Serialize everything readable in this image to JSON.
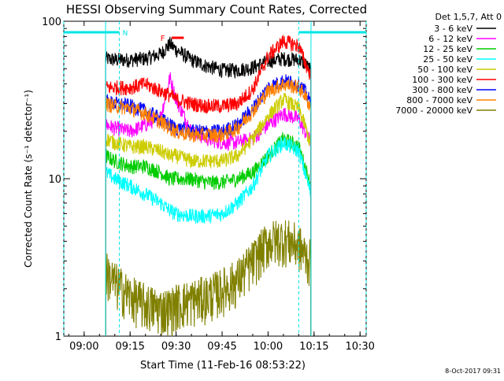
{
  "chart_data": {
    "type": "line",
    "title": "HESSI Observing Summary Count Rates, Corrected",
    "xlabel": "Start Time (11-Feb-16 08:53:22)",
    "ylabel": "Corrected Count Rate (s⁻¹ detector⁻¹)",
    "yscale": "log",
    "ylim": [
      1,
      100
    ],
    "xlim": [
      "08:53:22",
      "10:32:00"
    ],
    "x_ticks": [
      "09:00",
      "09:15",
      "09:30",
      "09:45",
      "10:00",
      "10:15",
      "10:30"
    ],
    "y_ticks": [
      "1",
      "10",
      "100"
    ],
    "legend_header": "Det 1,5,7, Att 0",
    "legend_placement": "top-right",
    "timestamp": "8-Oct-2017 09:31",
    "annotations": {
      "night_label": "N",
      "flare_label": "F"
    },
    "night_intervals": [
      {
        "start": "08:53:22",
        "end": "09:11:30"
      },
      {
        "start": "10:10:00",
        "end": "10:32:00"
      }
    ],
    "flare_interval": {
      "start": "09:28:30",
      "end": "09:32:30"
    },
    "data_interval": {
      "start": "09:07:00",
      "end": "10:14:00"
    },
    "time_samples": [
      "09:07",
      "09:10",
      "09:15",
      "09:20",
      "09:25",
      "09:28",
      "09:30",
      "09:35",
      "09:40",
      "09:45",
      "09:50",
      "09:55",
      "10:00",
      "10:05",
      "10:10",
      "10:12",
      "10:14"
    ],
    "series": [
      {
        "name": "3 - 6 keV",
        "color": "#000000",
        "values": [
          58,
          57,
          57,
          58,
          62,
          72,
          66,
          57,
          52,
          49,
          49,
          51,
          56,
          58,
          57,
          54,
          48
        ]
      },
      {
        "name": "6 - 12 keV",
        "color": "#ff00ff",
        "values": [
          22,
          21,
          20,
          22,
          25,
          44,
          32,
          20,
          18,
          17,
          17,
          18,
          22,
          26,
          24,
          20,
          17
        ]
      },
      {
        "name": "12 - 25 keV",
        "color": "#00cc00",
        "values": [
          14,
          13,
          12,
          12,
          11,
          10,
          10,
          10,
          9.5,
          9.5,
          10,
          11,
          14,
          18,
          16,
          12,
          9
        ]
      },
      {
        "name": "25 - 50 keV",
        "color": "#00ffff",
        "values": [
          11,
          10,
          9,
          8,
          7,
          6.3,
          6,
          5.8,
          5.8,
          6,
          7,
          9,
          14,
          17,
          15,
          11,
          8
        ]
      },
      {
        "name": "50 - 100 keV",
        "color": "#cccc00",
        "values": [
          18,
          17,
          16,
          16,
          15,
          14,
          14,
          13,
          13,
          13,
          14,
          18,
          25,
          32,
          28,
          22,
          16
        ]
      },
      {
        "name": "100 - 300 keV",
        "color": "#ff0000",
        "values": [
          38,
          38,
          38,
          40,
          36,
          34,
          32,
          30,
          29,
          29,
          30,
          37,
          60,
          75,
          70,
          55,
          45
        ]
      },
      {
        "name": "300 - 800 keV",
        "color": "#0000ff",
        "values": [
          31,
          30,
          29,
          27,
          24,
          22,
          21,
          20,
          20,
          20,
          22,
          28,
          38,
          42,
          40,
          36,
          30
        ]
      },
      {
        "name": "800 - 7000 keV",
        "color": "#ff8000",
        "values": [
          30,
          29,
          28,
          26,
          23,
          21,
          20,
          19,
          19,
          19,
          21,
          27,
          36,
          40,
          38,
          34,
          28
        ]
      },
      {
        "name": "7000 - 20000 keV",
        "color": "#808000",
        "values": [
          2.6,
          2.2,
          1.8,
          1.6,
          1.5,
          1.5,
          1.6,
          1.7,
          1.8,
          2.0,
          2.3,
          3.0,
          4.0,
          4.2,
          3.8,
          3.3,
          3.0
        ]
      }
    ]
  }
}
